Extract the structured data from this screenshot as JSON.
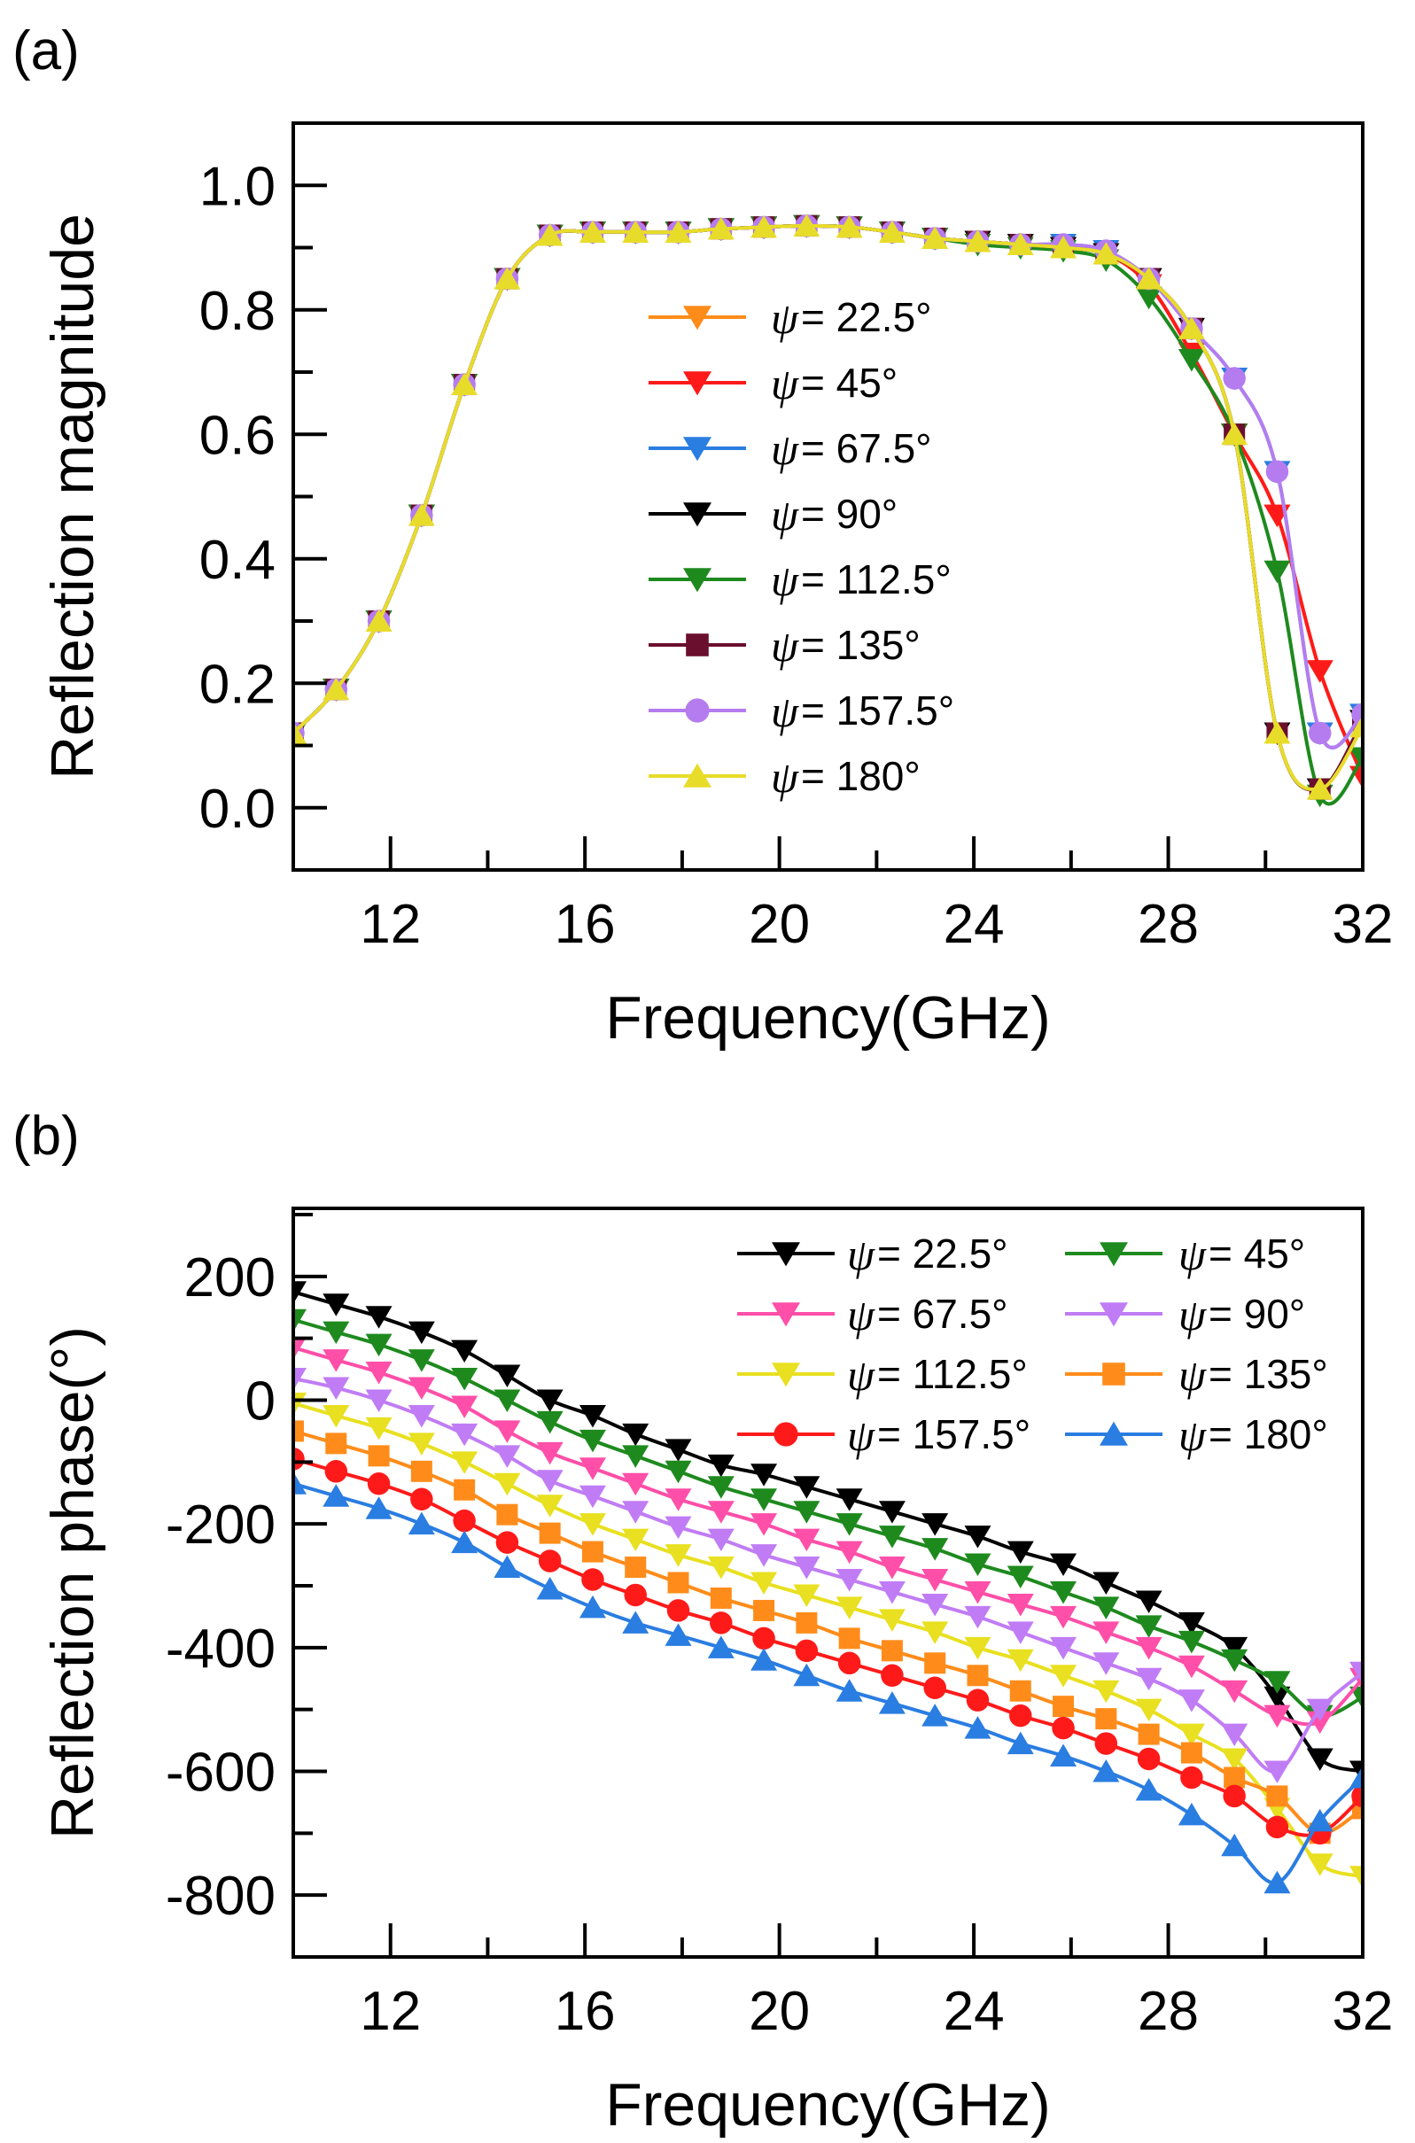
{
  "chart_data": [
    {
      "panel_label": "(a)",
      "type": "line",
      "title": "",
      "xlabel": "Frequency(GHz)",
      "ylabel": "Reflection magnitude",
      "xlim": [
        10,
        32
      ],
      "ylim": [
        -0.1,
        1.1
      ],
      "xticks": [
        12,
        16,
        20,
        24,
        28,
        32
      ],
      "yticks": [
        0.0,
        0.2,
        0.4,
        0.6,
        0.8,
        1.0
      ],
      "ytick_labels": [
        "0.0",
        "0.2",
        "0.4",
        "0.6",
        "0.8",
        "1.0"
      ],
      "legend_placement": "center",
      "x": [
        10,
        10.88,
        11.76,
        12.64,
        13.52,
        14.4,
        15.28,
        16.16,
        17.04,
        17.92,
        18.8,
        19.68,
        20.56,
        21.44,
        22.32,
        23.2,
        24.08,
        24.96,
        25.84,
        26.72,
        27.6,
        28.48,
        29.36,
        30.24,
        31.12,
        32
      ],
      "series": [
        {
          "name": "ψ = 22.5°",
          "psi": "ψ",
          "label": "= 22.5°",
          "color": "#ff8c1a",
          "marker": "tri-down",
          "values": [
            0.12,
            0.19,
            0.3,
            0.47,
            0.68,
            0.85,
            0.92,
            0.925,
            0.925,
            0.925,
            0.93,
            0.933,
            0.935,
            0.933,
            0.925,
            0.915,
            0.91,
            0.905,
            0.9,
            0.89,
            0.84,
            0.73,
            0.6,
            0.47,
            0.22,
            0.05
          ]
        },
        {
          "name": "ψ = 45°",
          "psi": "ψ",
          "label": "=  45°",
          "color": "#ff1a1a",
          "marker": "tri-down",
          "values": [
            0.12,
            0.19,
            0.3,
            0.47,
            0.68,
            0.85,
            0.92,
            0.925,
            0.925,
            0.925,
            0.93,
            0.933,
            0.935,
            0.933,
            0.925,
            0.915,
            0.91,
            0.905,
            0.9,
            0.89,
            0.84,
            0.73,
            0.6,
            0.47,
            0.22,
            0.05
          ]
        },
        {
          "name": "ψ = 67.5°",
          "psi": "ψ",
          "label": "= 67.5°",
          "color": "#2a7de1",
          "marker": "tri-down",
          "values": [
            0.12,
            0.19,
            0.3,
            0.47,
            0.68,
            0.85,
            0.92,
            0.925,
            0.925,
            0.925,
            0.93,
            0.933,
            0.935,
            0.933,
            0.925,
            0.915,
            0.91,
            0.905,
            0.905,
            0.895,
            0.85,
            0.77,
            0.69,
            0.54,
            0.12,
            0.15
          ]
        },
        {
          "name": "ψ = 90°",
          "psi": "ψ",
          "label": "=  90°",
          "color": "#000000",
          "marker": "tri-down",
          "values": [
            0.12,
            0.19,
            0.3,
            0.47,
            0.68,
            0.85,
            0.92,
            0.925,
            0.925,
            0.925,
            0.93,
            0.933,
            0.935,
            0.933,
            0.925,
            0.915,
            0.91,
            0.905,
            0.9,
            0.89,
            0.85,
            0.77,
            0.6,
            0.12,
            0.03,
            0.14
          ]
        },
        {
          "name": "ψ = 112.5°",
          "psi": "ψ",
          "label": "= 112.5°",
          "color": "#1e8a1e",
          "marker": "tri-down",
          "values": [
            0.12,
            0.19,
            0.3,
            0.47,
            0.68,
            0.85,
            0.92,
            0.925,
            0.925,
            0.925,
            0.93,
            0.933,
            0.935,
            0.933,
            0.925,
            0.915,
            0.905,
            0.9,
            0.895,
            0.88,
            0.82,
            0.72,
            0.6,
            0.38,
            0.02,
            0.08
          ]
        },
        {
          "name": "ψ = 135°",
          "psi": "ψ",
          "label": "=  135°",
          "color": "#6b0f2e",
          "marker": "square",
          "values": [
            0.12,
            0.19,
            0.3,
            0.47,
            0.68,
            0.85,
            0.92,
            0.925,
            0.925,
            0.925,
            0.93,
            0.933,
            0.935,
            0.933,
            0.925,
            0.915,
            0.91,
            0.905,
            0.9,
            0.89,
            0.85,
            0.77,
            0.6,
            0.12,
            0.03,
            0.14
          ]
        },
        {
          "name": "ψ = 157.5°",
          "psi": "ψ",
          "label": "= 157.5°",
          "color": "#b57cf0",
          "marker": "circle",
          "values": [
            0.12,
            0.19,
            0.3,
            0.47,
            0.68,
            0.85,
            0.92,
            0.925,
            0.925,
            0.925,
            0.93,
            0.933,
            0.935,
            0.933,
            0.925,
            0.915,
            0.91,
            0.905,
            0.905,
            0.895,
            0.85,
            0.77,
            0.69,
            0.54,
            0.12,
            0.15
          ]
        },
        {
          "name": "ψ = 180°",
          "psi": "ψ",
          "label": "=  180°",
          "color": "#e8dc2a",
          "marker": "tri-up",
          "values": [
            0.12,
            0.19,
            0.3,
            0.47,
            0.68,
            0.85,
            0.92,
            0.925,
            0.925,
            0.925,
            0.93,
            0.933,
            0.935,
            0.933,
            0.925,
            0.915,
            0.91,
            0.905,
            0.9,
            0.89,
            0.85,
            0.77,
            0.6,
            0.12,
            0.03,
            0.13
          ]
        }
      ]
    },
    {
      "panel_label": "(b)",
      "type": "line",
      "title": "",
      "xlabel": "Frequency(GHz)",
      "ylabel": "Reflection phase(°)",
      "xlim": [
        10,
        32
      ],
      "ylim": [
        -900,
        310
      ],
      "xticks": [
        12,
        16,
        20,
        24,
        28,
        32
      ],
      "yticks": [
        -800,
        -600,
        -400,
        -200,
        0,
        200
      ],
      "ytick_labels": [
        "-800",
        "-600",
        "-400",
        "-200",
        "0",
        "200"
      ],
      "legend_placement": "top-right",
      "x": [
        10,
        10.88,
        11.76,
        12.64,
        13.52,
        14.4,
        15.28,
        16.16,
        17.04,
        17.92,
        18.8,
        19.68,
        20.56,
        21.44,
        22.32,
        23.2,
        24.08,
        24.96,
        25.84,
        26.72,
        27.6,
        28.48,
        29.36,
        30.24,
        31.12,
        32
      ],
      "series": [
        {
          "name": "ψ = 22.5°",
          "psi": "ψ",
          "label": "=  22.5°",
          "color": "#000000",
          "marker": "tri-down",
          "values": [
            175,
            155,
            135,
            110,
            80,
            40,
            0,
            -25,
            -55,
            -80,
            -105,
            -120,
            -140,
            -160,
            -180,
            -200,
            -220,
            -245,
            -265,
            -295,
            -325,
            -360,
            -400,
            -480,
            -580,
            -600
          ]
        },
        {
          "name": "ψ = 45°",
          "psi": "ψ",
          "label": "=  45°",
          "color": "#1e8a1e",
          "marker": "tri-down",
          "values": [
            130,
            110,
            90,
            65,
            35,
            0,
            -35,
            -65,
            -90,
            -115,
            -140,
            -160,
            -180,
            -200,
            -220,
            -240,
            -265,
            -285,
            -310,
            -335,
            -365,
            -390,
            -420,
            -455,
            -510,
            -480
          ]
        },
        {
          "name": "ψ = 67.5°",
          "psi": "ψ",
          "label": "=  67.5°",
          "color": "#ff4fa8",
          "marker": "tri-down",
          "values": [
            85,
            65,
            45,
            20,
            -10,
            -50,
            -85,
            -110,
            -135,
            -160,
            -180,
            -200,
            -225,
            -245,
            -270,
            -290,
            -310,
            -330,
            -350,
            -375,
            -400,
            -430,
            -470,
            -510,
            -520,
            -450
          ]
        },
        {
          "name": "ψ = 90°",
          "psi": "ψ",
          "label": "=  90°",
          "color": "#c07cf5",
          "marker": "tri-down",
          "values": [
            35,
            20,
            0,
            -25,
            -55,
            -90,
            -130,
            -155,
            -180,
            -205,
            -225,
            -250,
            -270,
            -290,
            -310,
            -330,
            -350,
            -375,
            -400,
            -425,
            -450,
            -485,
            -540,
            -600,
            -500,
            -440
          ]
        },
        {
          "name": "ψ = 112.5°",
          "psi": "ψ",
          "label": "= 112.5°",
          "color": "#e8e020",
          "marker": "tri-down",
          "values": [
            -5,
            -25,
            -45,
            -70,
            -100,
            -135,
            -170,
            -200,
            -225,
            -250,
            -270,
            -295,
            -315,
            -335,
            -355,
            -375,
            -400,
            -420,
            -445,
            -470,
            -500,
            -540,
            -580,
            -660,
            -750,
            -770
          ]
        },
        {
          "name": "ψ = 135°",
          "psi": "ψ",
          "label": "= 135°",
          "color": "#ff8c1a",
          "marker": "square",
          "values": [
            -50,
            -70,
            -90,
            -115,
            -145,
            -185,
            -215,
            -245,
            -270,
            -295,
            -320,
            -340,
            -360,
            -385,
            -405,
            -425,
            -445,
            -470,
            -495,
            -515,
            -540,
            -570,
            -610,
            -640,
            -700,
            -660
          ]
        },
        {
          "name": "ψ = 157.5°",
          "psi": "ψ",
          "label": "= 157.5°",
          "color": "#ff1a1a",
          "marker": "circle",
          "values": [
            -95,
            -115,
            -135,
            -160,
            -195,
            -230,
            -260,
            -290,
            -315,
            -340,
            -360,
            -385,
            -405,
            -425,
            -445,
            -465,
            -485,
            -510,
            -530,
            -555,
            -580,
            -610,
            -640,
            -690,
            -700,
            -640
          ]
        },
        {
          "name": "ψ = 180°",
          "psi": "ψ",
          "label": "= 180°",
          "color": "#2a7de1",
          "marker": "tri-up",
          "values": [
            -135,
            -155,
            -175,
            -200,
            -230,
            -270,
            -305,
            -335,
            -360,
            -380,
            -400,
            -420,
            -445,
            -470,
            -490,
            -510,
            -530,
            -555,
            -575,
            -600,
            -630,
            -670,
            -720,
            -780,
            -680,
            -610
          ]
        }
      ]
    }
  ]
}
